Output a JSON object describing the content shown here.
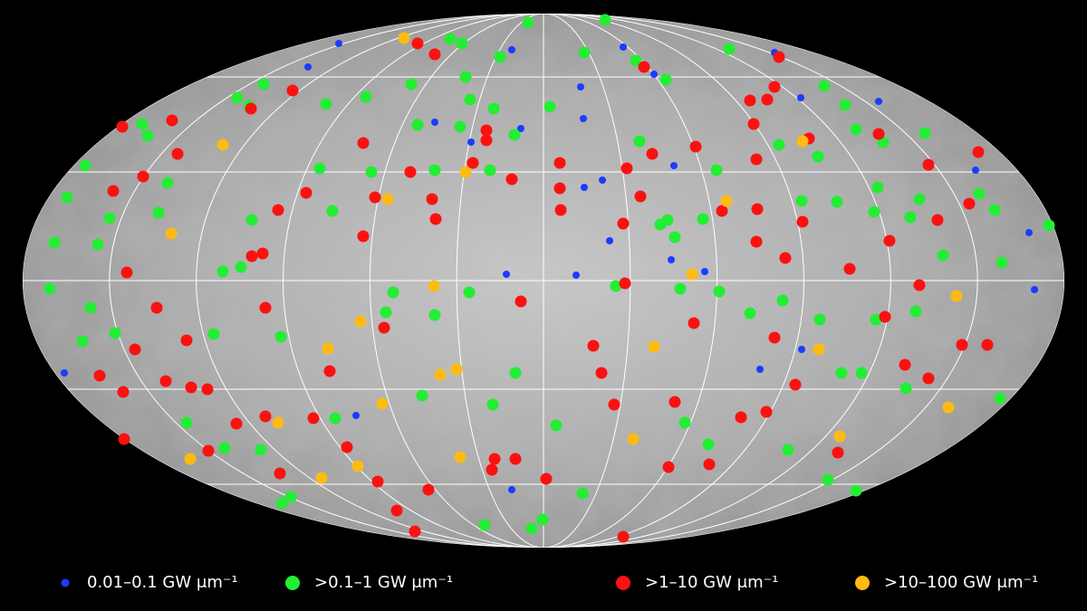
{
  "legend": {
    "items": [
      {
        "label": "0.01–0.1 GW μm⁻¹",
        "color": "#1a3cff"
      },
      {
        "label": ">0.1–1 GW μm⁻¹",
        "color": "#22ee33"
      },
      {
        "label": ">1–10 GW μm⁻¹",
        "color": "#ff1010"
      },
      {
        "label": ">10–100 GW μm⁻¹",
        "color": "#ffbb11"
      }
    ]
  }
}
